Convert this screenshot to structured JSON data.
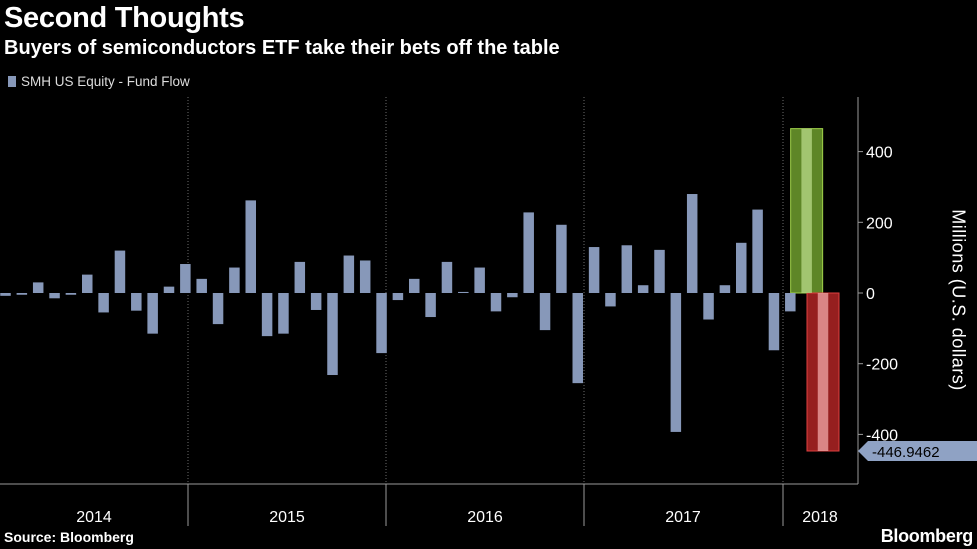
{
  "header": {
    "title": "Second Thoughts",
    "subtitle": "Buyers of semiconductors ETF take their bets off the table"
  },
  "footer": {
    "source": "Source: Bloomberg",
    "brand": "Bloomberg"
  },
  "colors": {
    "bar": "#8798b9",
    "background": "#000000",
    "positive_highlight": "#6f9e2e",
    "negative_highlight": "#b02424",
    "grid": "#6b6b6b"
  },
  "chart_data": {
    "type": "bar",
    "legend": [
      "SMH US Equity - Fund Flow"
    ],
    "legend_position": "top-left",
    "ylabel": "Millions (U.S. dollars)",
    "ylim": [
      -530,
      560
    ],
    "yticks": [
      -400,
      -200,
      0,
      200,
      400
    ],
    "ytick_labels": [
      "-400",
      "-200",
      "0",
      "200",
      "400"
    ],
    "year_labels": [
      "2014",
      "2015",
      "2016",
      "2017",
      "2018"
    ],
    "grid": "vertical year dividers, dotted",
    "series": [
      {
        "name": "SMH US Equity - Fund Flow",
        "values": [
          -8,
          -5,
          30,
          -15,
          -5,
          52,
          -55,
          120,
          -50,
          -115,
          18,
          82,
          40,
          -88,
          72,
          262,
          -122,
          -115,
          88,
          -48,
          -232,
          106,
          92,
          -170,
          -20,
          40,
          -68,
          88,
          3,
          72,
          -52,
          -12,
          228,
          -105,
          193,
          -255,
          130,
          -38,
          135,
          22,
          122,
          -393,
          280,
          -75,
          22,
          142,
          236,
          -162,
          -52,
          465,
          -446.9462
        ]
      }
    ],
    "highlights": [
      {
        "label": "positive",
        "value": 465
      },
      {
        "label": "negative",
        "value": -446.9462
      }
    ],
    "callout": "-446.9462"
  }
}
